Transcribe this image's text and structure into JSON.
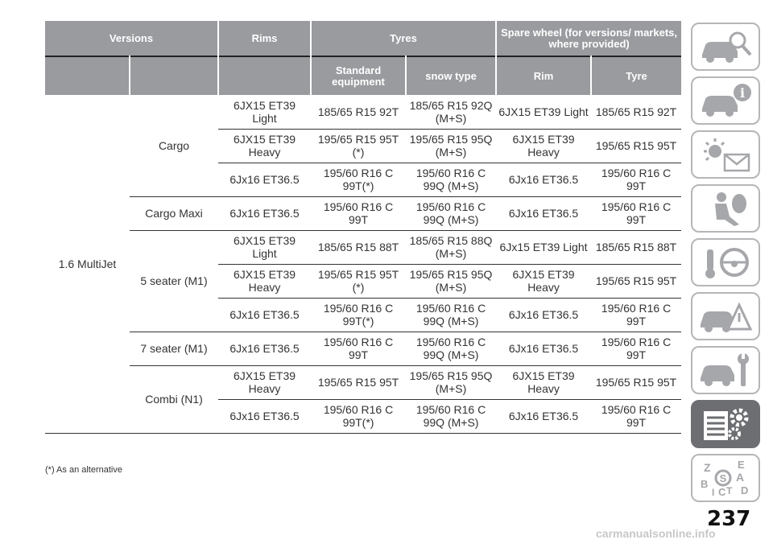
{
  "header": {
    "versions": "Versions",
    "rims": "Rims",
    "tyres": "Tyres",
    "spare": "Spare wheel (for versions/ markets, where provided)",
    "standard": "Standard equipment",
    "snow": "snow type",
    "rim": "Rim",
    "tyre": "Tyre"
  },
  "engine": "1.6 MultiJet",
  "groups": {
    "cargo": "Cargo",
    "cargo_maxi": "Cargo Maxi",
    "five_seater": "5 seater (M1)",
    "seven_seater": "7 seater (M1)",
    "combi": "Combi (N1)"
  },
  "rows": [
    {
      "rims": "6JX15 ET39 Light",
      "std": "185/65 R15 92T",
      "snow": "185/65 R15 92Q (M+S)",
      "srim": "6JX15 ET39 Light",
      "styre": "185/65 R15 92T"
    },
    {
      "rims": "6JX15 ET39 Heavy",
      "std": "195/65 R15 95T (*)",
      "snow": "195/65 R15 95Q (M+S)",
      "srim": "6JX15 ET39 Heavy",
      "styre": "195/65 R15 95T"
    },
    {
      "rims": "6Jx16 ET36.5",
      "std": "195/60 R16 C 99T(*)",
      "snow": "195/60 R16 C 99Q (M+S)",
      "srim": "6Jx16 ET36.5",
      "styre": "195/60 R16 C 99T"
    },
    {
      "rims": "6Jx16 ET36.5",
      "std": "195/60 R16 C 99T",
      "snow": "195/60 R16 C 99Q (M+S)",
      "srim": "6Jx16 ET36.5",
      "styre": "195/60 R16 C 99T"
    },
    {
      "rims": "6JX15 ET39 Light",
      "std": "185/65 R15 88T",
      "snow": "185/65 R15 88Q (M+S)",
      "srim": "6Jx15 ET39 Light",
      "styre": "185/65 R15 88T"
    },
    {
      "rims": "6JX15 ET39 Heavy",
      "std": "195/65 R15 95T (*)",
      "snow": "195/65 R15 95Q (M+S)",
      "srim": "6JX15 ET39 Heavy",
      "styre": "195/65 R15 95T"
    },
    {
      "rims": "6Jx16 ET36.5",
      "std": "195/60 R16 C 99T(*)",
      "snow": "195/60 R16 C 99Q (M+S)",
      "srim": "6Jx16 ET36.5",
      "styre": "195/60 R16 C 99T"
    },
    {
      "rims": "6Jx16 ET36.5",
      "std": "195/60 R16 C 99T",
      "snow": "195/60 R16 C 99Q (M+S)",
      "srim": "6Jx16 ET36.5",
      "styre": "195/60 R16 C 99T"
    },
    {
      "rims": "6JX15 ET39 Heavy",
      "std": "195/65 R15 95T",
      "snow": "195/65 R15 95Q (M+S)",
      "srim": "6JX15 ET39 Heavy",
      "styre": "195/65 R15 95T"
    },
    {
      "rims": "6Jx16 ET36.5",
      "std": "195/60 R16 C 99T(*)",
      "snow": "195/60 R16 C 99Q (M+S)",
      "srim": "6Jx16 ET36.5",
      "styre": "195/60 R16 C 99T"
    }
  ],
  "footnote": "(*) As an alternative",
  "page_number": "237",
  "watermark": "carmanualsonline.info",
  "tabs": [
    {
      "icon": "car-search-icon"
    },
    {
      "icon": "car-info-icon"
    },
    {
      "icon": "warning-light-message-icon"
    },
    {
      "icon": "airbag-passenger-icon"
    },
    {
      "icon": "key-steering-wheel-icon"
    },
    {
      "icon": "car-accident-warning-icon"
    },
    {
      "icon": "car-wrench-icon"
    },
    {
      "icon": "technical-data-gears-icon",
      "active": "true"
    },
    {
      "icon": "alphabetical-index-icon"
    }
  ],
  "colors": {
    "header_bg": "#9a9b9f",
    "tab_border": "#b5b6b9",
    "active_tab": "#6d6e72"
  }
}
